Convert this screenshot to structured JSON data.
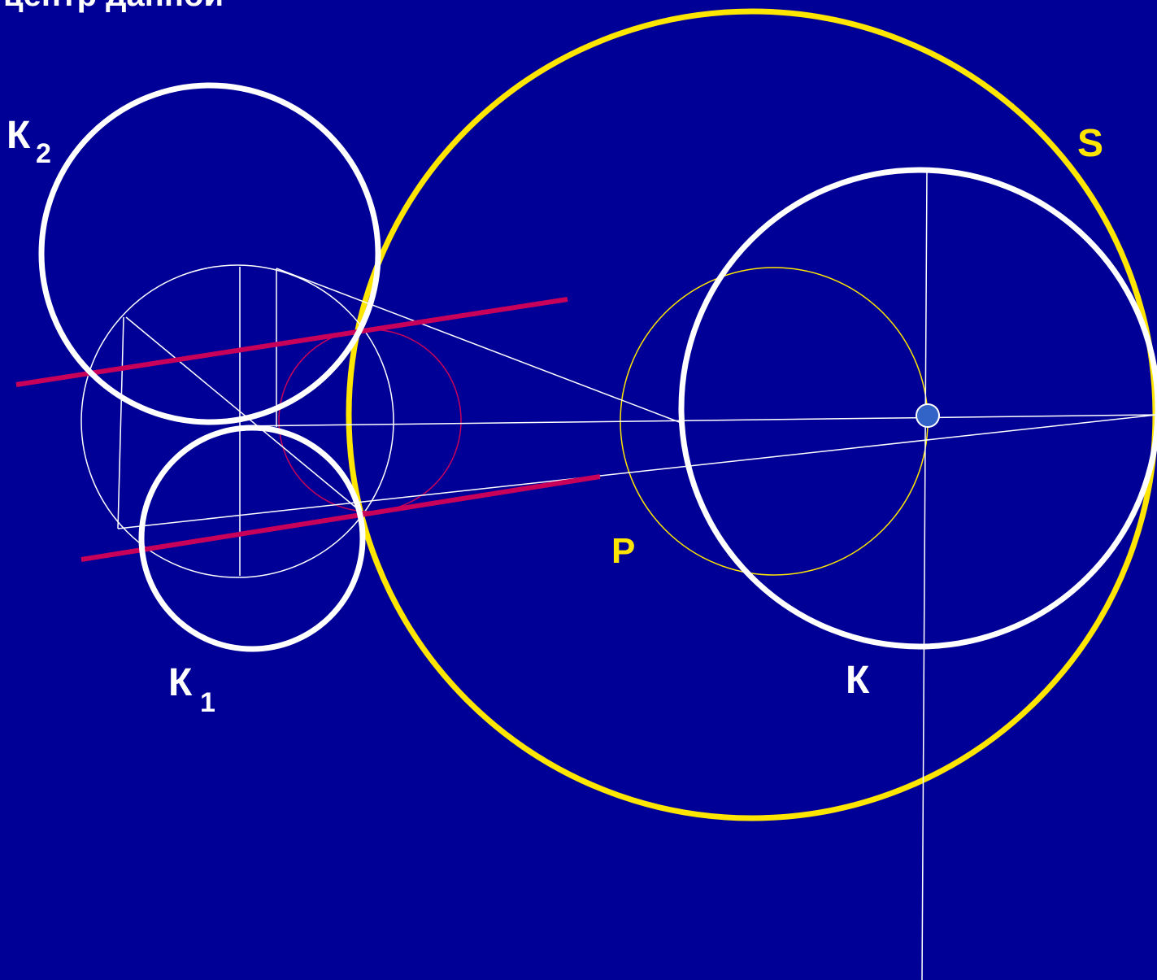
{
  "caption": "центр данной",
  "labels": {
    "k2_main": "К",
    "k2_sub": "2",
    "k1_main": "К",
    "k1_sub": "1",
    "k": "К",
    "p": "Р",
    "s": "S"
  },
  "colors": {
    "background": "#000096",
    "white": "#ffffff",
    "yellow": "#ffe600",
    "magenta": "#c8005a",
    "center_dot": "#3264c8"
  }
}
